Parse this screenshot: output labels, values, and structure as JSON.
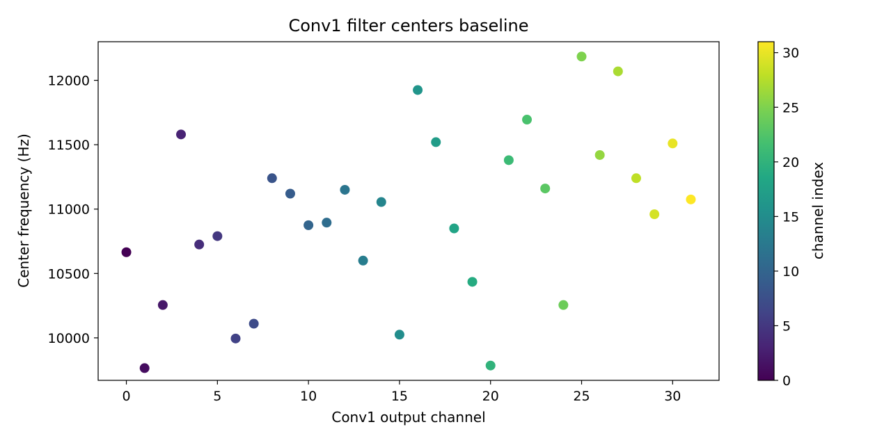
{
  "chart_data": {
    "type": "scatter",
    "title": "Conv1 filter centers baseline",
    "xlabel": "Conv1 output channel",
    "ylabel": "Center frequency (Hz)",
    "xlim": [
      -1.55,
      32.55
    ],
    "ylim": [
      9670,
      12300
    ],
    "xticks": [
      0,
      5,
      10,
      15,
      20,
      25,
      30
    ],
    "yticks": [
      10000,
      10500,
      11000,
      11500,
      12000
    ],
    "grid": false,
    "colormap": "viridis",
    "colorbar": {
      "label": "channel index",
      "range": [
        0,
        31
      ],
      "ticks": [
        0,
        5,
        10,
        15,
        20,
        25,
        30
      ]
    },
    "x": [
      0,
      1,
      2,
      3,
      4,
      5,
      6,
      7,
      8,
      9,
      10,
      11,
      12,
      13,
      14,
      15,
      16,
      17,
      18,
      19,
      20,
      21,
      22,
      23,
      24,
      25,
      26,
      27,
      28,
      29,
      30,
      31
    ],
    "y": [
      10665,
      9765,
      10255,
      11580,
      10725,
      10790,
      9995,
      10110,
      11240,
      11120,
      10875,
      10895,
      11150,
      10600,
      11055,
      10025,
      11925,
      11520,
      10850,
      10435,
      9785,
      11380,
      11695,
      11160,
      10255,
      12185,
      11420,
      12070,
      11240,
      10960,
      11510,
      11075
    ]
  }
}
